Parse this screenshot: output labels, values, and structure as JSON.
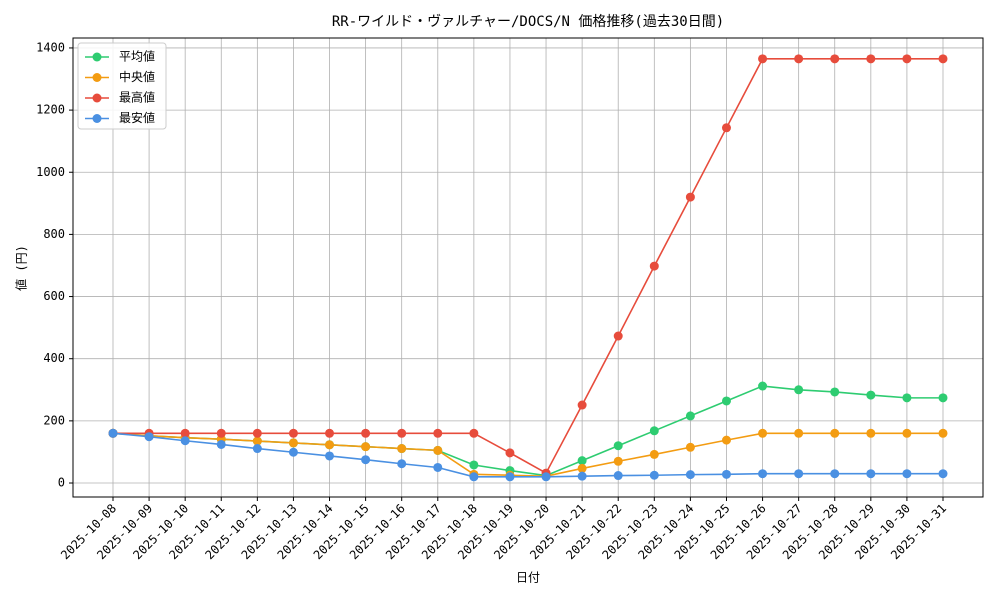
{
  "chart_data": {
    "type": "line",
    "title": "RR-ワイルド・ヴァルチャー/DOCS/N 価格推移(過去30日間)",
    "x_label": "日付",
    "y_label": "値 (円)",
    "categories": [
      "2025-10-08",
      "2025-10-09",
      "2025-10-10",
      "2025-10-11",
      "2025-10-12",
      "2025-10-13",
      "2025-10-14",
      "2025-10-15",
      "2025-10-16",
      "2025-10-17",
      "2025-10-18",
      "2025-10-19",
      "2025-10-20",
      "2025-10-21",
      "2025-10-22",
      "2025-10-23",
      "2025-10-24",
      "2025-10-25",
      "2025-10-26",
      "2025-10-27",
      "2025-10-28",
      "2025-10-29",
      "2025-10-30",
      "2025-10-31"
    ],
    "series": [
      {
        "name": "平均値",
        "color": "#2ecc71",
        "values": [
          160,
          152,
          146,
          141,
          135,
          129,
          123,
          117,
          111,
          105,
          58,
          40,
          24,
          72,
          120,
          168,
          216,
          264,
          312,
          300,
          293,
          283,
          274,
          274
        ]
      },
      {
        "name": "中央値",
        "color": "#f39c12",
        "values": [
          160,
          152,
          146,
          141,
          135,
          129,
          123,
          117,
          111,
          105,
          28,
          25,
          22,
          47,
          70,
          92,
          115,
          138,
          160,
          160,
          160,
          160,
          160,
          160
        ]
      },
      {
        "name": "最高値",
        "color": "#e74c3c",
        "values": [
          160,
          160,
          160,
          160,
          160,
          160,
          160,
          160,
          160,
          160,
          160,
          97,
          32,
          251,
          473,
          698,
          920,
          1143,
          1365,
          1365,
          1365,
          1365,
          1365,
          1365
        ]
      },
      {
        "name": "最安値",
        "color": "#4a90e2",
        "values": [
          160,
          149,
          136,
          124,
          111,
          99,
          87,
          75,
          62,
          50,
          20,
          20,
          20,
          22,
          24,
          25,
          27,
          28,
          30,
          30,
          30,
          30,
          30,
          30
        ]
      }
    ],
    "ylim": [
      -45,
      1432
    ],
    "yticks": [
      0,
      200,
      400,
      600,
      800,
      1000,
      1200,
      1400
    ],
    "grid": true,
    "legend": "upper-left"
  }
}
